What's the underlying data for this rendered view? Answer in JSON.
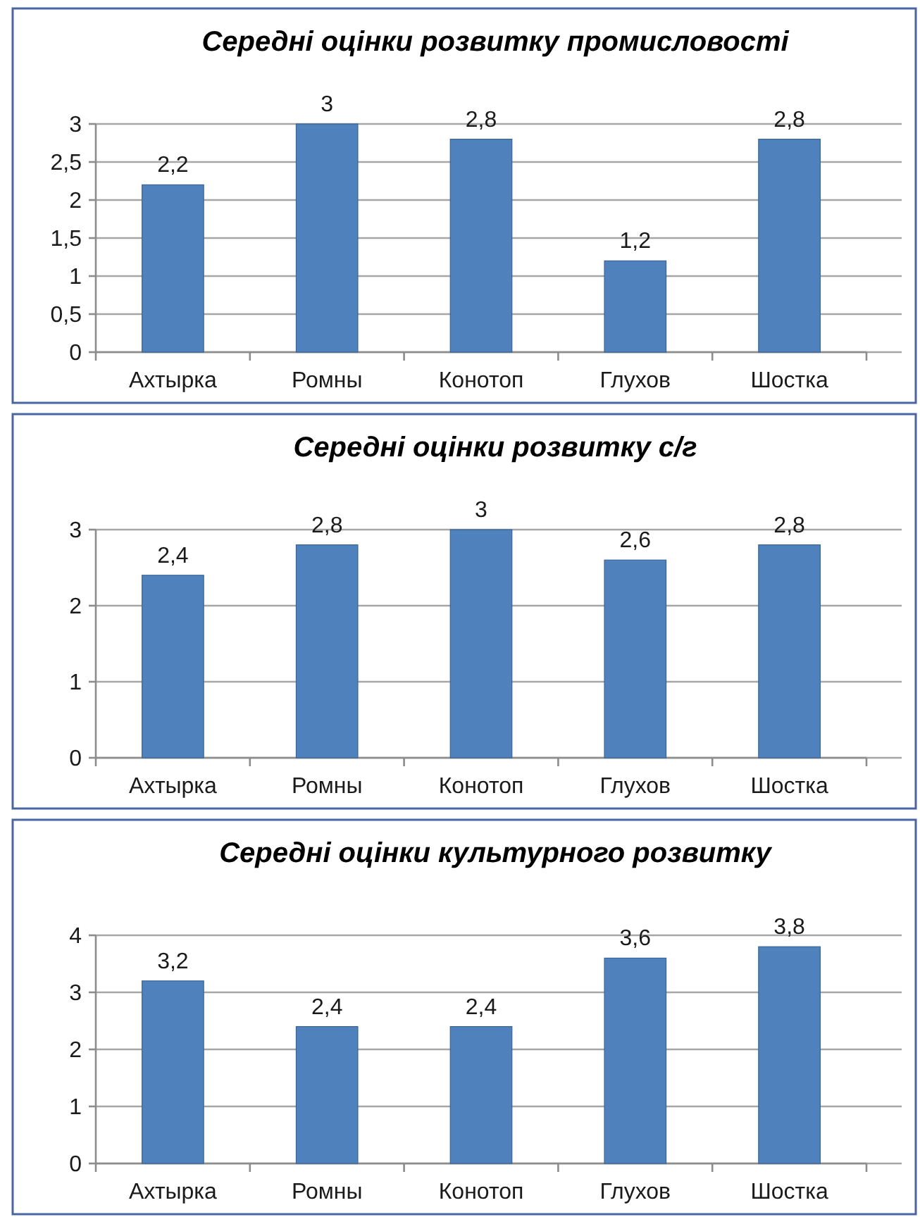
{
  "chart_data": [
    {
      "type": "bar",
      "title": "Середні оцінки розвитку промисловості",
      "categories": [
        "Ахтырка",
        "Ромны",
        "Конотоп",
        "Глухов",
        "Шостка"
      ],
      "values": [
        2.2,
        3,
        2.8,
        1.2,
        2.8
      ],
      "value_labels": [
        "2,2",
        "3",
        "2,8",
        "1,2",
        "2,8"
      ],
      "color": "#4f81bd",
      "ylim": [
        0,
        3
      ],
      "yticks": [
        0,
        {
          "value": 0.5,
          "label": "0,5"
        },
        1,
        {
          "value": 1.5,
          "label": "1,5"
        },
        2,
        {
          "value": 2.5,
          "label": "2,5"
        },
        3
      ],
      "grid": "y"
    },
    {
      "type": "bar",
      "title": "Середні оцінки розвитку с/г",
      "categories": [
        "Ахтырка",
        "Ромны",
        "Конотоп",
        "Глухов",
        "Шостка"
      ],
      "values": [
        2.4,
        2.8,
        3,
        2.6,
        2.8
      ],
      "value_labels": [
        "2,4",
        "2,8",
        "3",
        "2,6",
        "2,8"
      ],
      "color": "#4f81bd",
      "ylim": [
        0,
        3
      ],
      "yticks": [
        0,
        1,
        2,
        3
      ],
      "grid": "y"
    },
    {
      "type": "bar",
      "title": "Середні оцінки культурного розвитку",
      "categories": [
        "Ахтырка",
        "Ромны",
        "Конотоп",
        "Глухов",
        "Шостка"
      ],
      "values": [
        3.2,
        2.4,
        2.4,
        3.6,
        3.8
      ],
      "value_labels": [
        "3,2",
        "2,4",
        "2,4",
        "3,6",
        "3,8"
      ],
      "color": "#4f81bd",
      "ylim": [
        0,
        4
      ],
      "yticks": [
        0,
        1,
        2,
        3,
        4
      ],
      "grid": "y"
    }
  ]
}
